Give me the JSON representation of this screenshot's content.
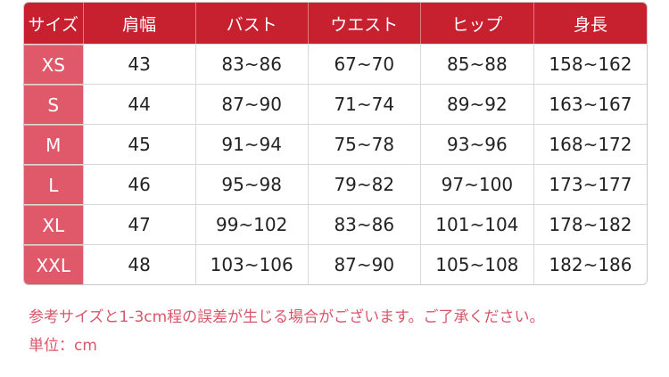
{
  "table": {
    "headers": [
      "サイズ",
      "肩幅",
      "バスト",
      "ウエスト",
      "ヒップ",
      "身長"
    ],
    "rows": [
      [
        "XS",
        "43",
        "83~86",
        "67~70",
        "85~88",
        "158~162"
      ],
      [
        "S",
        "44",
        "87~90",
        "71~74",
        "89~92",
        "163~167"
      ],
      [
        "M",
        "45",
        "91~94",
        "75~78",
        "93~96",
        "168~172"
      ],
      [
        "L",
        "46",
        "95~98",
        "79~82",
        "97~100",
        "173~177"
      ],
      [
        "XL",
        "47",
        "99~102",
        "83~86",
        "101~104",
        "178~182"
      ],
      [
        "XXL",
        "48",
        "103~106",
        "87~90",
        "105~108",
        "182~186"
      ]
    ]
  },
  "notes": {
    "line1": "参考サイズと1-3cm程の誤差が生じる場合がございます。ご了承ください。",
    "line2": "単位：cm"
  },
  "colors": {
    "header": "#c7202f",
    "size_column": "#e0596a",
    "note_text": "#d9566a"
  }
}
